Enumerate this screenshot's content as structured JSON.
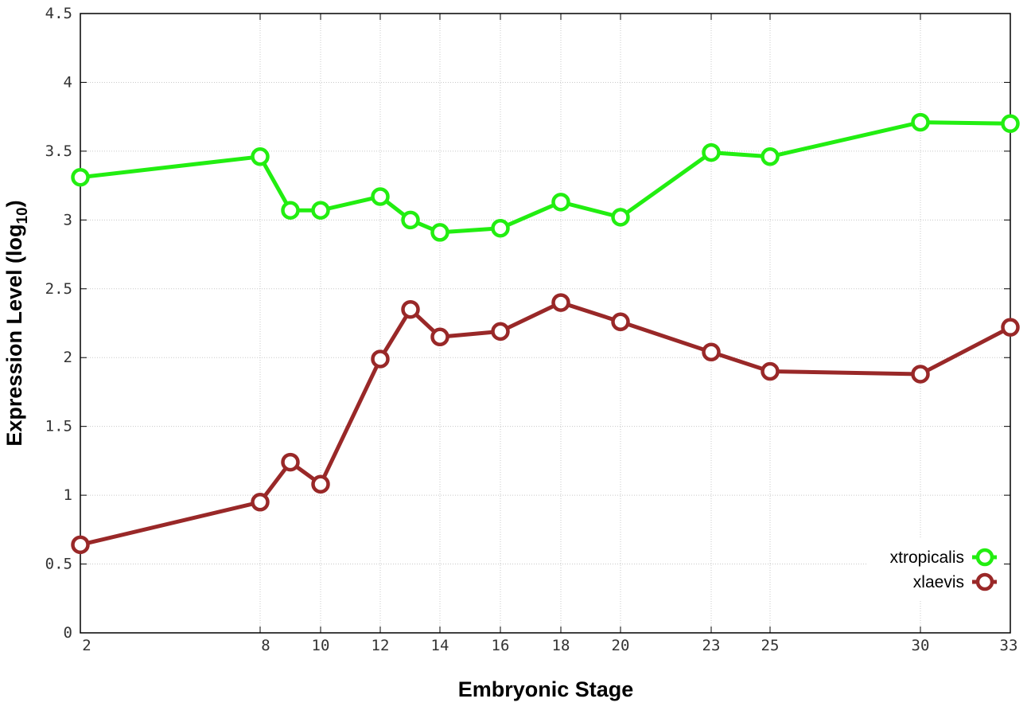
{
  "chart_data": {
    "type": "line",
    "xlabel": "Embryonic Stage",
    "ylabel_main": "Expression Level (log",
    "ylabel_sub": "10",
    "ylabel_close": ")",
    "x_scale": "categorical-by-stage",
    "x_ticks": [
      "2",
      "8",
      "10",
      "12",
      "14",
      "16",
      "18",
      "20",
      "23",
      "25",
      "30",
      "33"
    ],
    "ylim": [
      0,
      4.5
    ],
    "y_ticks": [
      "0",
      "0.5",
      "1",
      "1.5",
      "2",
      "2.5",
      "3",
      "3.5",
      "4",
      "4.5"
    ],
    "grid": true,
    "legend_position": "bottom-right",
    "series": [
      {
        "name": "xtropicalis",
        "color": "#22ee11",
        "x": [
          2,
          8,
          9,
          10,
          12,
          13,
          14,
          16,
          18,
          20,
          23,
          25,
          30,
          33
        ],
        "values": [
          3.31,
          3.46,
          3.07,
          3.07,
          3.17,
          3.0,
          2.91,
          2.94,
          3.13,
          3.02,
          3.49,
          3.46,
          3.71,
          3.7
        ]
      },
      {
        "name": "xlaevis",
        "color": "#992828",
        "x": [
          2,
          8,
          9,
          10,
          12,
          13,
          14,
          16,
          18,
          20,
          23,
          25,
          30,
          33
        ],
        "values": [
          0.64,
          0.95,
          1.24,
          1.08,
          1.99,
          2.35,
          2.15,
          2.19,
          2.4,
          2.26,
          2.04,
          1.9,
          1.88,
          2.22
        ]
      }
    ]
  }
}
